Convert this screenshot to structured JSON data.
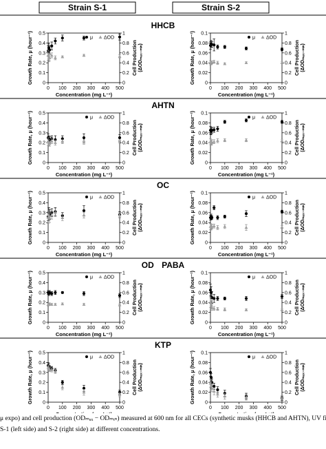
{
  "headers": {
    "left": "Strain S-1",
    "right": "Strain S-2"
  },
  "legend": {
    "mu": "μ",
    "od": "ΔOD"
  },
  "axes": {
    "ylabel_left": "Growth Rate, μ (hour⁻¹)",
    "ylabel_right_line1": "Cell Production",
    "ylabel_right_line2": "(ΔODₘₐₓ₋ₘᵢₙ)",
    "xlabel": "Concentration (mg L⁻¹)"
  },
  "chart_data": [
    {
      "compound": "HHCB",
      "strain": "S-1",
      "type": "scatter",
      "xlim": [
        0,
        500
      ],
      "ylim": [
        0,
        0.5
      ],
      "y2lim": [
        0,
        1
      ],
      "xticks": [
        0,
        100,
        200,
        300,
        400,
        500
      ],
      "yticks": [
        0,
        0.1,
        0.2,
        0.3,
        0.4,
        0.5
      ],
      "y2ticks": [
        0,
        0.2,
        0.4,
        0.6,
        0.8,
        1
      ],
      "series": [
        {
          "name": "μ",
          "axis": "left",
          "marker": "circle",
          "x": [
            0,
            5,
            10,
            25,
            50,
            100,
            250,
            500
          ],
          "y": [
            0.32,
            0.35,
            0.33,
            0.37,
            0.42,
            0.45,
            0.45,
            0.46
          ],
          "err": [
            0.05,
            0.05,
            0.04,
            0.04,
            0.03,
            0.03,
            0.02,
            0.03
          ]
        },
        {
          "name": "ΔOD",
          "axis": "right",
          "marker": "triangle",
          "x": [
            0,
            5,
            10,
            25,
            50,
            100,
            250,
            500
          ],
          "y": [
            0.55,
            0.5,
            0.5,
            0.55,
            0.5,
            0.52,
            0.55,
            0.53
          ],
          "err": [
            0.1,
            0.08,
            0.06,
            0.05,
            0.04,
            0.02,
            0.02,
            0.03
          ]
        }
      ]
    },
    {
      "compound": "HHCB",
      "strain": "S-2",
      "type": "scatter",
      "xlim": [
        0,
        500
      ],
      "ylim": [
        0,
        0.1
      ],
      "y2lim": [
        0,
        1
      ],
      "xticks": [
        0,
        100,
        200,
        300,
        400,
        500
      ],
      "yticks": [
        0,
        0.02,
        0.04,
        0.06,
        0.08,
        0.1
      ],
      "y2ticks": [
        0,
        0.2,
        0.4,
        0.6,
        0.8,
        1
      ],
      "series": [
        {
          "name": "μ",
          "axis": "left",
          "marker": "circle",
          "x": [
            0,
            5,
            10,
            25,
            50,
            100,
            250,
            500
          ],
          "y": [
            0.075,
            0.078,
            0.077,
            0.076,
            0.072,
            0.072,
            0.069,
            0.067
          ],
          "err": [
            0.008,
            0.007,
            0.006,
            0.012,
            0.004,
            0.003,
            0.003,
            0.003
          ]
        },
        {
          "name": "ΔOD",
          "axis": "right",
          "marker": "triangle",
          "x": [
            0,
            5,
            10,
            25,
            50,
            100,
            250,
            500
          ],
          "y": [
            0.4,
            0.39,
            0.41,
            0.42,
            0.4,
            0.38,
            0.4,
            0.4
          ],
          "err": [
            0.04,
            0.03,
            0.03,
            0.03,
            0.03,
            0.02,
            0.02,
            0.02
          ]
        }
      ]
    },
    {
      "compound": "AHTN",
      "strain": "S-1",
      "type": "scatter",
      "xlim": [
        0,
        500
      ],
      "ylim": [
        0,
        0.5
      ],
      "y2lim": [
        0,
        1
      ],
      "xticks": [
        0,
        100,
        200,
        300,
        400,
        500
      ],
      "yticks": [
        0,
        0.1,
        0.2,
        0.3,
        0.4,
        0.5
      ],
      "y2ticks": [
        0,
        0.2,
        0.4,
        0.6,
        0.8,
        1
      ],
      "series": [
        {
          "name": "μ",
          "axis": "left",
          "marker": "circle",
          "x": [
            0,
            5,
            10,
            25,
            50,
            100,
            250,
            500
          ],
          "y": [
            0.25,
            0.24,
            0.23,
            0.24,
            0.23,
            0.24,
            0.25,
            0.25
          ],
          "err": [
            0.04,
            0.03,
            0.03,
            0.03,
            0.04,
            0.03,
            0.04,
            0.03
          ]
        },
        {
          "name": "ΔOD",
          "axis": "right",
          "marker": "triangle",
          "x": [
            0,
            5,
            10,
            25,
            50,
            100,
            250,
            500
          ],
          "y": [
            0.42,
            0.4,
            0.38,
            0.43,
            0.4,
            0.42,
            0.41,
            0.43
          ],
          "err": [
            0.08,
            0.06,
            0.05,
            0.05,
            0.05,
            0.04,
            0.04,
            0.04
          ]
        }
      ]
    },
    {
      "compound": "AHTN",
      "strain": "S-2",
      "type": "scatter",
      "xlim": [
        0,
        500
      ],
      "ylim": [
        0,
        0.1
      ],
      "y2lim": [
        0,
        1
      ],
      "xticks": [
        0,
        100,
        200,
        300,
        400,
        500
      ],
      "yticks": [
        0,
        0.02,
        0.04,
        0.06,
        0.08,
        0.1
      ],
      "y2ticks": [
        0,
        0.2,
        0.4,
        0.6,
        0.8,
        1
      ],
      "series": [
        {
          "name": "μ",
          "axis": "left",
          "marker": "circle",
          "x": [
            0,
            5,
            10,
            25,
            50,
            100,
            250,
            500
          ],
          "y": [
            0.065,
            0.063,
            0.065,
            0.066,
            0.068,
            0.082,
            0.085,
            0.082
          ],
          "err": [
            0.008,
            0.007,
            0.006,
            0.005,
            0.005,
            0.003,
            0.003,
            0.003
          ]
        },
        {
          "name": "ΔOD",
          "axis": "right",
          "marker": "triangle",
          "x": [
            0,
            5,
            10,
            25,
            50,
            100,
            250,
            500
          ],
          "y": [
            0.42,
            0.4,
            0.41,
            0.42,
            0.44,
            0.45,
            0.45,
            0.44
          ],
          "err": [
            0.06,
            0.05,
            0.05,
            0.04,
            0.04,
            0.03,
            0.03,
            0.03
          ]
        }
      ]
    },
    {
      "compound": "OC",
      "strain": "S-1",
      "type": "scatter",
      "xlim": [
        0,
        500
      ],
      "ylim": [
        0,
        0.5
      ],
      "y2lim": [
        0,
        1
      ],
      "xticks": [
        0,
        100,
        200,
        300,
        400,
        500
      ],
      "yticks": [
        0,
        0.1,
        0.2,
        0.3,
        0.4,
        0.5
      ],
      "y2ticks": [
        0,
        0.2,
        0.4,
        0.6,
        0.8,
        1
      ],
      "series": [
        {
          "name": "μ",
          "axis": "left",
          "marker": "circle",
          "x": [
            0,
            5,
            10,
            25,
            50,
            100,
            250,
            500
          ],
          "y": [
            0.26,
            0.3,
            0.28,
            0.3,
            0.31,
            0.27,
            0.32,
            0.28
          ],
          "err": [
            0.04,
            0.05,
            0.05,
            0.04,
            0.04,
            0.03,
            0.05,
            0.03
          ]
        },
        {
          "name": "ΔOD",
          "axis": "right",
          "marker": "triangle",
          "x": [
            0,
            5,
            10,
            25,
            50,
            100,
            250,
            500
          ],
          "y": [
            0.5,
            0.55,
            0.5,
            0.55,
            0.6,
            0.5,
            0.55,
            0.55
          ],
          "err": [
            0.12,
            0.1,
            0.1,
            0.08,
            0.08,
            0.06,
            0.06,
            0.05
          ]
        }
      ]
    },
    {
      "compound": "OC",
      "strain": "S-2",
      "type": "scatter",
      "xlim": [
        0,
        500
      ],
      "ylim": [
        0,
        0.1
      ],
      "y2lim": [
        0,
        1
      ],
      "xticks": [
        0,
        100,
        200,
        300,
        400,
        500
      ],
      "yticks": [
        0,
        0.02,
        0.04,
        0.06,
        0.08,
        0.1
      ],
      "y2ticks": [
        0,
        0.2,
        0.4,
        0.6,
        0.8,
        1
      ],
      "series": [
        {
          "name": "μ",
          "axis": "left",
          "marker": "circle",
          "x": [
            0,
            5,
            10,
            25,
            50,
            100,
            250,
            500
          ],
          "y": [
            0.05,
            0.052,
            0.05,
            0.07,
            0.05,
            0.052,
            0.058,
            0.062
          ],
          "err": [
            0.005,
            0.005,
            0.004,
            0.004,
            0.004,
            0.003,
            0.006,
            0.003
          ]
        },
        {
          "name": "ΔOD",
          "axis": "right",
          "marker": "triangle",
          "x": [
            0,
            5,
            10,
            25,
            50,
            100,
            250,
            500
          ],
          "y": [
            0.32,
            0.3,
            0.32,
            0.33,
            0.3,
            0.32,
            0.3,
            0.31
          ],
          "err": [
            0.06,
            0.05,
            0.05,
            0.04,
            0.04,
            0.04,
            0.06,
            0.03
          ]
        }
      ]
    },
    {
      "compound": "OD PABA",
      "strain": "S-1",
      "type": "scatter",
      "xlim": [
        0,
        500
      ],
      "ylim": [
        0,
        0.5
      ],
      "y2lim": [
        0,
        1
      ],
      "xticks": [
        0,
        100,
        200,
        300,
        400,
        500
      ],
      "yticks": [
        0,
        0.1,
        0.2,
        0.3,
        0.4,
        0.5
      ],
      "y2ticks": [
        0,
        0.2,
        0.4,
        0.6,
        0.8,
        1
      ],
      "series": [
        {
          "name": "μ",
          "axis": "left",
          "marker": "circle",
          "x": [
            0,
            5,
            10,
            25,
            50,
            100,
            250,
            500
          ],
          "y": [
            0.3,
            0.29,
            0.3,
            0.29,
            0.3,
            0.3,
            0.29,
            0.27
          ],
          "err": [
            0.02,
            0.02,
            0.02,
            0.02,
            0.02,
            0.01,
            0.02,
            0.02
          ]
        },
        {
          "name": "ΔOD",
          "axis": "right",
          "marker": "triangle",
          "x": [
            0,
            5,
            10,
            25,
            50,
            100,
            250,
            500
          ],
          "y": [
            0.36,
            0.36,
            0.37,
            0.36,
            0.36,
            0.37,
            0.36,
            0.35
          ],
          "err": [
            0.03,
            0.02,
            0.02,
            0.02,
            0.02,
            0.02,
            0.02,
            0.02
          ]
        }
      ]
    },
    {
      "compound": "OD PABA",
      "strain": "S-2",
      "type": "scatter",
      "xlim": [
        0,
        500
      ],
      "ylim": [
        0,
        0.1
      ],
      "y2lim": [
        0,
        1
      ],
      "xticks": [
        0,
        100,
        200,
        300,
        400,
        500
      ],
      "yticks": [
        0,
        0.02,
        0.04,
        0.06,
        0.08,
        0.1
      ],
      "y2ticks": [
        0,
        0.2,
        0.4,
        0.6,
        0.8,
        1
      ],
      "series": [
        {
          "name": "μ",
          "axis": "left",
          "marker": "circle",
          "x": [
            0,
            5,
            10,
            25,
            50,
            100,
            250,
            500
          ],
          "y": [
            0.065,
            0.06,
            0.05,
            0.048,
            0.048,
            0.048,
            0.048,
            0.052
          ],
          "err": [
            0.012,
            0.012,
            0.012,
            0.008,
            0.004,
            0.003,
            0.004,
            0.004
          ]
        },
        {
          "name": "ΔOD",
          "axis": "right",
          "marker": "triangle",
          "x": [
            0,
            5,
            10,
            25,
            50,
            100,
            250,
            500
          ],
          "y": [
            0.4,
            0.35,
            0.3,
            0.28,
            0.27,
            0.26,
            0.25,
            0.25
          ],
          "err": [
            0.1,
            0.08,
            0.06,
            0.04,
            0.03,
            0.03,
            0.02,
            0.02
          ]
        }
      ]
    },
    {
      "compound": "KTP",
      "strain": "S-1",
      "type": "scatter",
      "xlim": [
        0,
        500
      ],
      "ylim": [
        0,
        0.5
      ],
      "y2lim": [
        0,
        1
      ],
      "xticks": [
        0,
        100,
        200,
        300,
        400,
        500
      ],
      "yticks": [
        0,
        0.1,
        0.2,
        0.3,
        0.4,
        0.5
      ],
      "y2ticks": [
        0,
        0.2,
        0.4,
        0.6,
        0.8,
        1
      ],
      "series": [
        {
          "name": "μ",
          "axis": "left",
          "marker": "circle",
          "x": [
            0,
            5,
            10,
            25,
            50,
            100,
            250,
            500
          ],
          "y": [
            0.37,
            0.36,
            0.35,
            0.34,
            0.32,
            0.2,
            0.14,
            0.1
          ],
          "err": [
            0.03,
            0.03,
            0.02,
            0.02,
            0.02,
            0.02,
            0.03,
            0.02
          ]
        },
        {
          "name": "ΔOD",
          "axis": "right",
          "marker": "triangle",
          "x": [
            0,
            5,
            10,
            25,
            50,
            100,
            250,
            500
          ],
          "y": [
            0.7,
            0.68,
            0.66,
            0.65,
            0.62,
            0.3,
            0.2,
            0.15
          ],
          "err": [
            0.05,
            0.05,
            0.04,
            0.04,
            0.04,
            0.05,
            0.06,
            0.04
          ]
        }
      ]
    },
    {
      "compound": "KTP",
      "strain": "S-2",
      "type": "scatter",
      "xlim": [
        0,
        500
      ],
      "ylim": [
        0,
        0.1
      ],
      "y2lim": [
        0,
        1
      ],
      "xticks": [
        0,
        100,
        200,
        300,
        400,
        500
      ],
      "yticks": [
        0,
        0.02,
        0.04,
        0.06,
        0.08,
        0.1
      ],
      "y2ticks": [
        0,
        0.2,
        0.4,
        0.6,
        0.8,
        1
      ],
      "series": [
        {
          "name": "μ",
          "axis": "left",
          "marker": "circle",
          "x": [
            0,
            5,
            10,
            25,
            50,
            100,
            250,
            500
          ],
          "y": [
            0.06,
            0.05,
            0.04,
            0.032,
            0.025,
            0.018,
            0.012,
            0.008
          ],
          "err": [
            0.008,
            0.008,
            0.007,
            0.006,
            0.006,
            0.006,
            0.006,
            0.004
          ]
        },
        {
          "name": "ΔOD",
          "axis": "right",
          "marker": "triangle",
          "x": [
            0,
            5,
            10,
            25,
            50,
            100,
            250,
            500
          ],
          "y": [
            0.38,
            0.33,
            0.28,
            0.22,
            0.16,
            0.12,
            0.1,
            0.08
          ],
          "err": [
            0.08,
            0.08,
            0.07,
            0.07,
            0.06,
            0.06,
            0.06,
            0.05
          ]
        }
      ]
    }
  ],
  "caption": {
    "line1": "μ expo) and cell production (ODₘₐₓ − ODₘᵢₙ) measured at 600 nm for all CECs (synthetic musks (HHCB and AHTN), UV filte",
    "line2": "S-1 (left side) and S-2 (right side) at different concentrations."
  }
}
